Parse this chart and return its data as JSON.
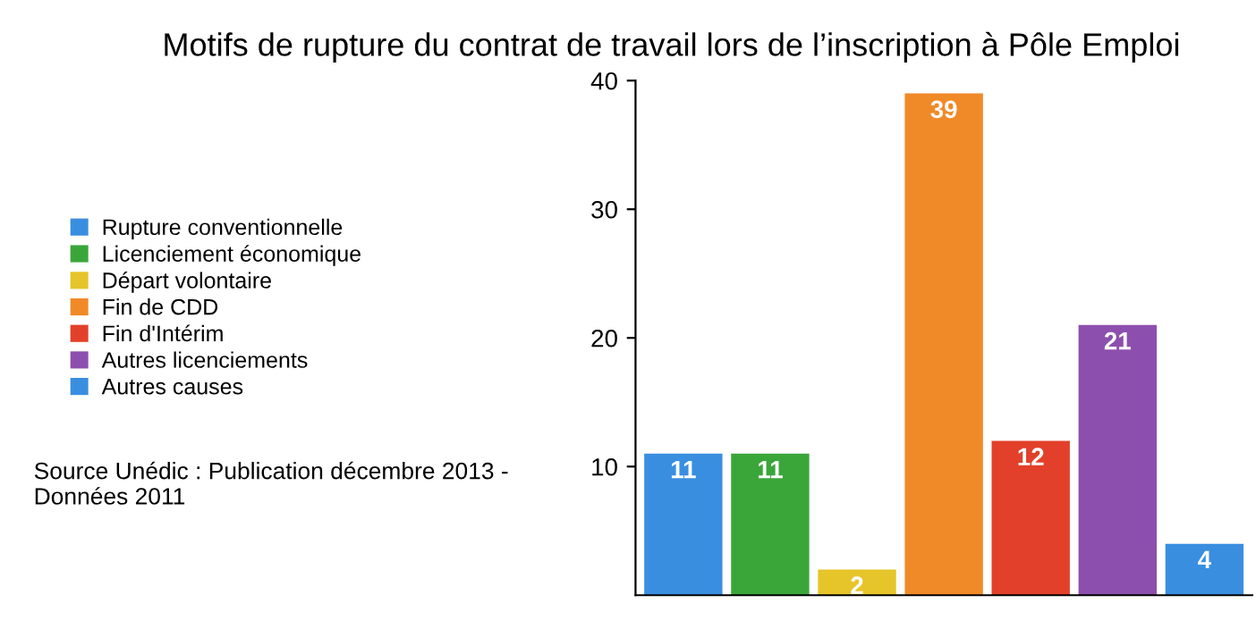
{
  "chart_data": {
    "type": "bar",
    "title": "Motifs de rupture du contrat de travail lors de l’inscription à Pôle Emploi",
    "categories": [
      null,
      null,
      null,
      null,
      null,
      null,
      null
    ],
    "series": [
      {
        "name": "Rupture conventionnelle",
        "color": "#3a8ee0",
        "values": [
          11,
          null,
          null,
          null,
          null,
          null,
          null
        ]
      },
      {
        "name": "Licenciement économique",
        "color": "#3aa63a",
        "values": [
          null,
          11,
          null,
          null,
          null,
          null,
          null
        ]
      },
      {
        "name": "Départ volontaire",
        "color": "#e6c52a",
        "values": [
          null,
          null,
          2,
          null,
          null,
          null,
          null
        ]
      },
      {
        "name": "Fin de CDD",
        "color": "#f08a28",
        "values": [
          null,
          null,
          null,
          39,
          null,
          null,
          null
        ]
      },
      {
        "name": "Fin d'Intérim",
        "color": "#e2402a",
        "values": [
          null,
          null,
          null,
          null,
          12,
          null,
          null
        ]
      },
      {
        "name": "Autres licenciements",
        "color": "#8d4fae",
        "values": [
          null,
          null,
          null,
          null,
          null,
          21,
          null
        ]
      },
      {
        "name": "Autres causes",
        "color": "#3a8ee0",
        "values": [
          null,
          null,
          null,
          null,
          null,
          null,
          4
        ]
      }
    ],
    "ylim": [
      0,
      40
    ],
    "yticks": [
      10,
      20,
      30,
      40
    ],
    "data_labels": true,
    "legend": "left",
    "tick_labels": "y",
    "grid": false,
    "annotations": [
      "Source Unédic : Publication décembre 2013 - Données 2011"
    ]
  }
}
